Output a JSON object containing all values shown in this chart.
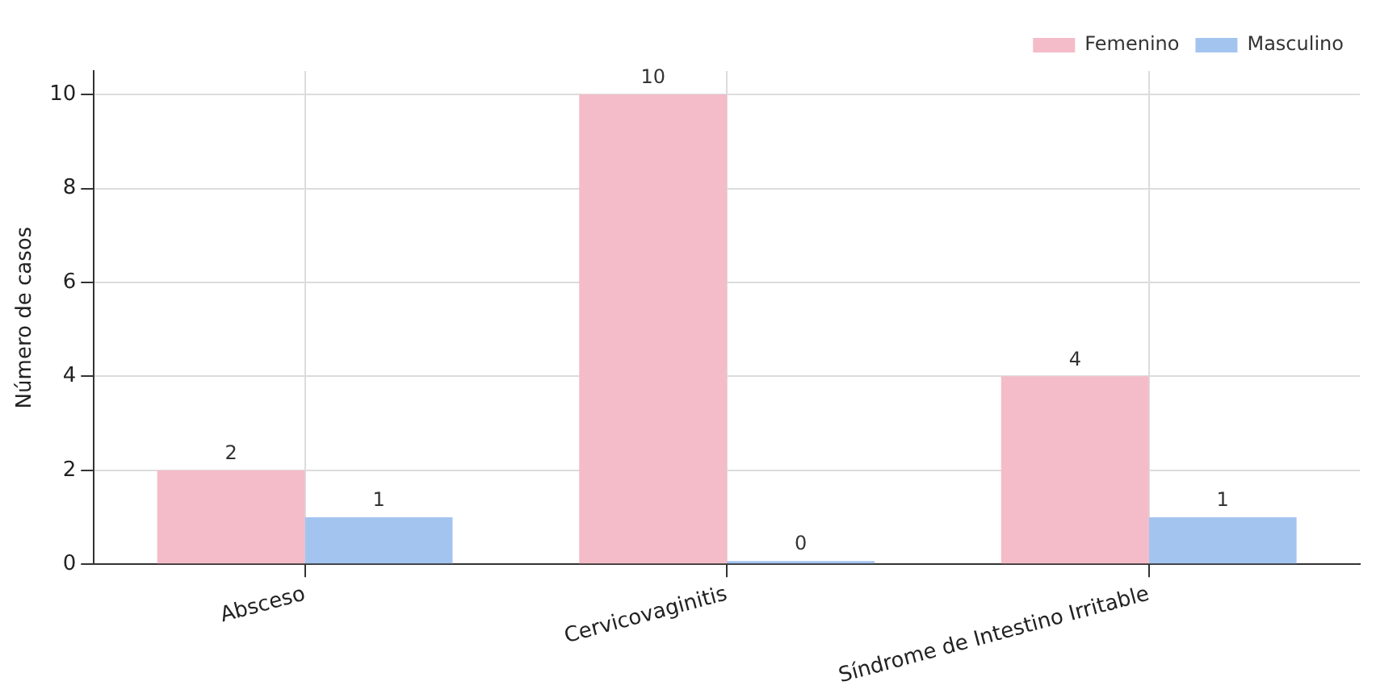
{
  "chart_data": {
    "type": "bar",
    "ylabel": "Número de casos",
    "categories": [
      "Absceso",
      "Cervicovaginitis",
      "Síndrome de Intestino Irritable"
    ],
    "series": [
      {
        "name": "Femenino",
        "color": "#f4bcc8",
        "values": [
          2,
          10,
          4
        ]
      },
      {
        "name": "Masculino",
        "color": "#a4c4f0",
        "values": [
          1,
          0,
          1
        ]
      }
    ],
    "ylim": [
      0,
      10.5
    ],
    "yticks": [
      0,
      2,
      4,
      6,
      8,
      10
    ],
    "grid": true,
    "legend": "top right",
    "data_labels": true
  }
}
